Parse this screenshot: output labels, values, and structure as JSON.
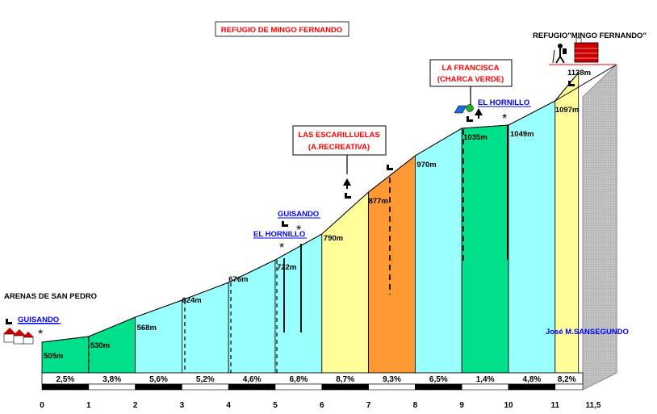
{
  "title": "REFUGIO DE MINGO FERNANDO",
  "credit": "José M.SANSEGUNDO",
  "colors": {
    "cyan": "#99ffff",
    "green": "#00e08a",
    "yellow": "#ffff99",
    "orange": "#ff9933",
    "red_text": "#ff0000",
    "blue_text": "#0000ff"
  },
  "labels": {
    "arenas": "ARENAS DE SAN PEDRO",
    "guisando_1": "GUISANDO",
    "guisando_2": "GUISANDO",
    "hornillo_1": "EL HORNILLO",
    "hornillo_2": "EL HORNILLO",
    "escarilluelas_1": "LAS ESCARILLUELAS",
    "escarilluelas_2": "(A.RECREATIVA)",
    "francisca_1": "LA FRANCISCA",
    "francisca_2": "(CHARCA VERDE)",
    "refugio_top": "REFUGIO\"MINGO FERNANDO\""
  },
  "chart_data": {
    "type": "area",
    "title": "REFUGIO DE MINGO FERNANDO",
    "xlabel": "",
    "ylabel": "",
    "x_ticks": [
      "0",
      "1",
      "2",
      "3",
      "4",
      "5",
      "6",
      "7",
      "8",
      "9",
      "10",
      "11",
      "11,5"
    ],
    "km": [
      0,
      1,
      2,
      3,
      4,
      5,
      6,
      7,
      8,
      9,
      10,
      11,
      11.5
    ],
    "altitude_labels": [
      "505m",
      "530m",
      "568m",
      "624m",
      "676m",
      "722m",
      "790m",
      "877m",
      "970m",
      "1035m",
      "1049m",
      "1097m",
      "1138m"
    ],
    "altitudes": [
      505,
      530,
      568,
      624,
      676,
      722,
      790,
      877,
      970,
      1035,
      1049,
      1097,
      1138
    ],
    "segments": [
      {
        "from": 0,
        "to": 1,
        "gradient": "2,5%",
        "color": "green"
      },
      {
        "from": 1,
        "to": 2,
        "gradient": "3,8%",
        "color": "green"
      },
      {
        "from": 2,
        "to": 3,
        "gradient": "5,6%",
        "color": "cyan"
      },
      {
        "from": 3,
        "to": 4,
        "gradient": "5,2%",
        "color": "cyan"
      },
      {
        "from": 4,
        "to": 5,
        "gradient": "4,6%",
        "color": "cyan"
      },
      {
        "from": 5,
        "to": 6,
        "gradient": "6,8%",
        "color": "cyan"
      },
      {
        "from": 6,
        "to": 7,
        "gradient": "8,7%",
        "color": "yellow"
      },
      {
        "from": 7,
        "to": 8,
        "gradient": "9,3%",
        "color": "orange"
      },
      {
        "from": 8,
        "to": 9,
        "gradient": "6,5%",
        "color": "cyan"
      },
      {
        "from": 9,
        "to": 10,
        "gradient": "1,4%",
        "color": "green"
      },
      {
        "from": 10,
        "to": 11,
        "gradient": "4,8%",
        "color": "cyan"
      },
      {
        "from": 11,
        "to": 11.5,
        "gradient": "8,2%",
        "color": "yellow"
      }
    ]
  }
}
